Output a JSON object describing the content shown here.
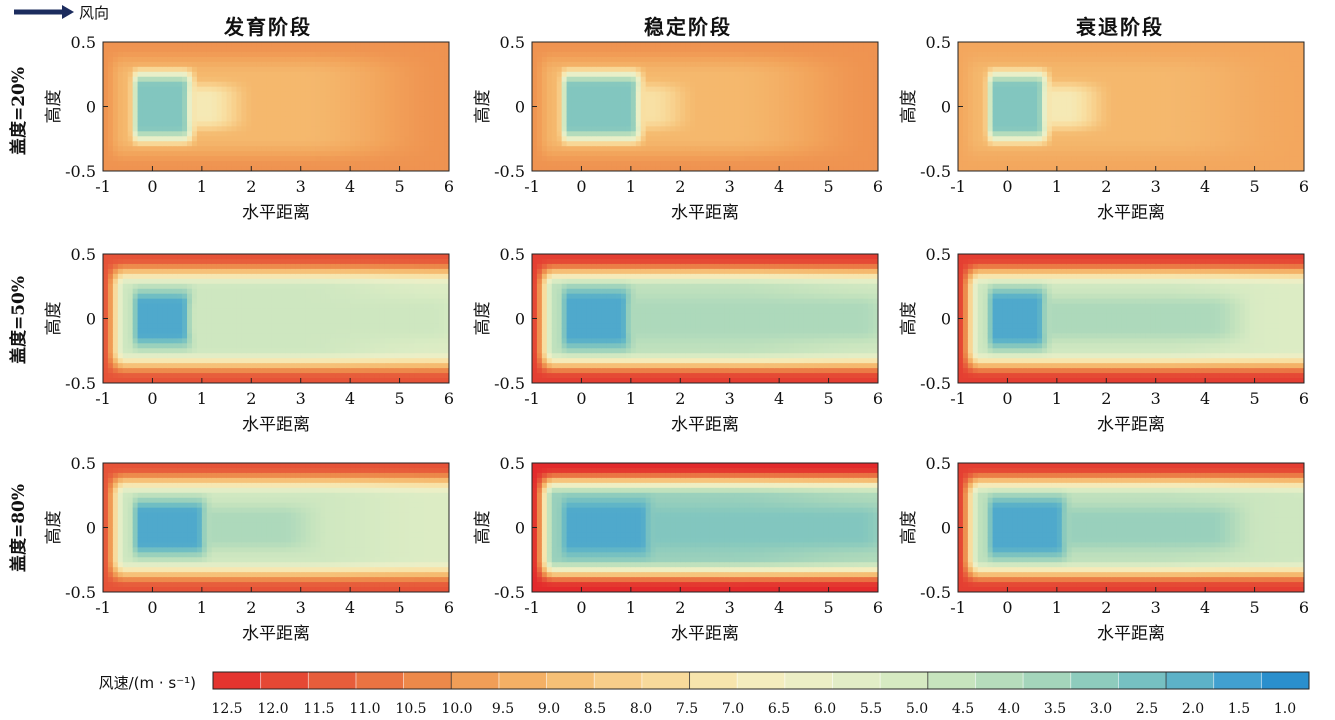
{
  "legend": {
    "arrow_label": "风向",
    "colorbar_title": "风速/(m · s⁻¹)"
  },
  "column_titles": [
    "发育阶段",
    "稳定阶段",
    "衰退阶段"
  ],
  "row_labels": [
    "盖度=20%",
    "盖度=50%",
    "盖度=80%"
  ],
  "colors": {
    "ramp": [
      "#e32a2c",
      "#e54734",
      "#e8653e",
      "#ec8548",
      "#f2a35a",
      "#f5bb70",
      "#f8d08c",
      "#f8e1a5",
      "#f4edbe",
      "#e9efc8",
      "#d8ebc3",
      "#c2e2bd",
      "#a9d7bb",
      "#8acabd",
      "#67b9c5",
      "#3f9fd0",
      "#1f87cc"
    ]
  },
  "chart_data": {
    "type": "heatmap",
    "layout": "3x3 small multiples",
    "xlabel": "水平距离",
    "ylabel": "高度",
    "xlim": [
      -1,
      6
    ],
    "ylim": [
      -0.5,
      0.5
    ],
    "xticks": [
      "-1",
      "0",
      "1",
      "2",
      "3",
      "4",
      "5",
      "6"
    ],
    "yticks": [
      "0.5",
      "0",
      "-0.5"
    ],
    "colorbar": {
      "title": "风速/(m · s⁻¹)",
      "range": [
        12.5,
        1.0
      ],
      "tick_labels": [
        "12.5",
        "12.0",
        "11.5",
        "11.0",
        "10.5",
        "10.0",
        "9.5",
        "9.0",
        "8.5",
        "8.0",
        "7.5",
        "7.0",
        "6.5",
        "6.0",
        "5.5",
        "5.0",
        "4.5",
        "4.0",
        "3.5",
        "3.0",
        "2.5",
        "2.0",
        "1.5",
        "1.0"
      ]
    },
    "panels": [
      {
        "row": "盖度=20%",
        "column": "发育阶段",
        "core_speed": 3.0,
        "core_x": [
          -0.3,
          0.6
        ],
        "core_y_halfwidth": 0.22,
        "wake_speed": 7.0,
        "wake_to_x": 1.5,
        "far_field": 9.0,
        "edge_speed": 10.0,
        "right_edge_speed": 10.0
      },
      {
        "row": "盖度=20%",
        "column": "稳定阶段",
        "core_speed": 3.0,
        "core_x": [
          -0.3,
          1.0
        ],
        "core_y_halfwidth": 0.22,
        "wake_speed": 7.5,
        "wake_to_x": 1.8,
        "far_field": 9.0,
        "edge_speed": 10.0,
        "right_edge_speed": 10.0
      },
      {
        "row": "盖度=20%",
        "column": "衰退阶段",
        "core_speed": 3.0,
        "core_x": [
          -0.3,
          0.6
        ],
        "core_y_halfwidth": 0.22,
        "wake_speed": 7.0,
        "wake_to_x": 1.6,
        "far_field": 9.0,
        "edge_speed": 9.5,
        "right_edge_speed": 9.5
      },
      {
        "row": "盖度=50%",
        "column": "发育阶段",
        "core_speed": 2.0,
        "core_x": [
          -0.3,
          0.6
        ],
        "core_y_halfwidth": 0.18,
        "wake_speed": 5.0,
        "wake_to_x": 6.0,
        "far_field": 5.0,
        "edge_speed": 11.5,
        "right_edge_speed": 5.5
      },
      {
        "row": "盖度=50%",
        "column": "稳定阶段",
        "core_speed": 2.0,
        "core_x": [
          -0.3,
          0.8
        ],
        "core_y_halfwidth": 0.2,
        "wake_speed": 4.0,
        "wake_to_x": 6.0,
        "far_field": 4.5,
        "edge_speed": 12.0,
        "right_edge_speed": 5.0
      },
      {
        "row": "盖度=50%",
        "column": "衰退阶段",
        "core_speed": 2.0,
        "core_x": [
          -0.3,
          0.6
        ],
        "core_y_halfwidth": 0.2,
        "wake_speed": 4.0,
        "wake_to_x": 4.5,
        "far_field": 5.0,
        "edge_speed": 12.0,
        "right_edge_speed": 5.5
      },
      {
        "row": "盖度=80%",
        "column": "发育阶段",
        "core_speed": 2.0,
        "core_x": [
          -0.3,
          0.9
        ],
        "core_y_halfwidth": 0.18,
        "wake_speed": 4.0,
        "wake_to_x": 3.0,
        "far_field": 5.0,
        "edge_speed": 11.5,
        "right_edge_speed": 5.5
      },
      {
        "row": "盖度=80%",
        "column": "稳定阶段",
        "core_speed": 2.0,
        "core_x": [
          -0.3,
          1.2
        ],
        "core_y_halfwidth": 0.18,
        "wake_speed": 3.0,
        "wake_to_x": 6.0,
        "far_field": 3.5,
        "edge_speed": 12.5,
        "right_edge_speed": 4.0
      },
      {
        "row": "盖度=80%",
        "column": "衰退阶段",
        "core_speed": 2.0,
        "core_x": [
          -0.3,
          1.0
        ],
        "core_y_halfwidth": 0.2,
        "wake_speed": 3.5,
        "wake_to_x": 4.5,
        "far_field": 4.5,
        "edge_speed": 12.0,
        "right_edge_speed": 5.0
      }
    ]
  }
}
